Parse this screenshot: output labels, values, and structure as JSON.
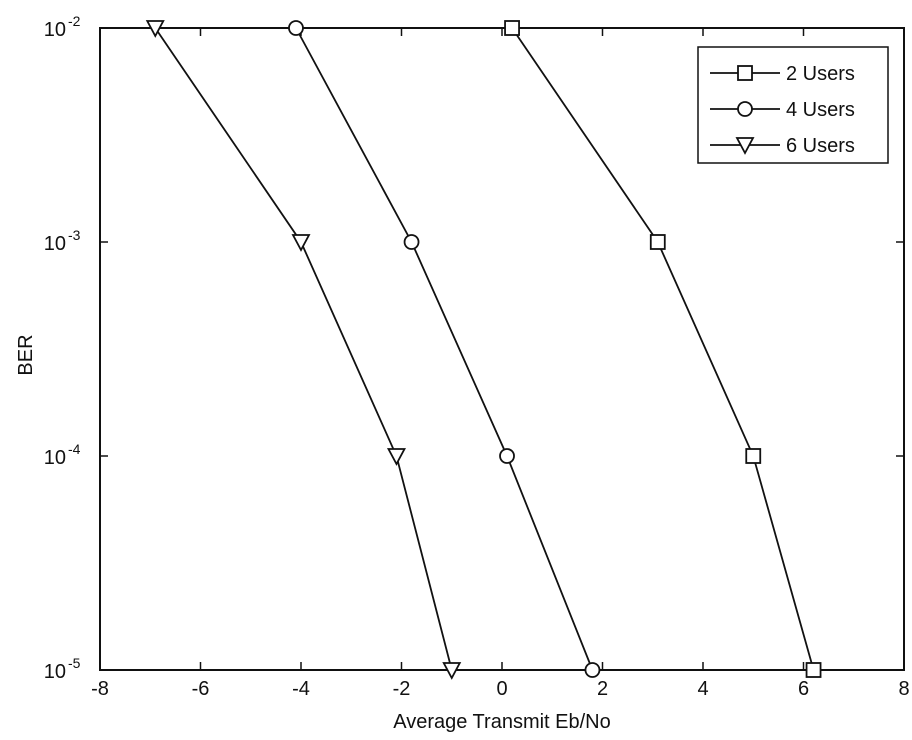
{
  "chart_data": {
    "type": "line",
    "title": "",
    "xlabel": "Average Transmit Eb/No",
    "ylabel": "BER",
    "xlim": [
      -8,
      8
    ],
    "ylim": [
      1e-05,
      0.01
    ],
    "yscale": "log",
    "grid": false,
    "legend": "top-right",
    "x_ticks": [
      "-8",
      "-6",
      "-4",
      "-2",
      "0",
      "2",
      "4",
      "6",
      "8"
    ],
    "y_ticks": [
      {
        "base": "10",
        "exp": "-2",
        "value": 0.01
      },
      {
        "base": "10",
        "exp": "-3",
        "value": 0.001
      },
      {
        "base": "10",
        "exp": "-4",
        "value": 0.0001
      },
      {
        "base": "10",
        "exp": "-5",
        "value": 1e-05
      }
    ],
    "series": [
      {
        "name": "2 Users",
        "marker": "square",
        "x": [
          0.2,
          3.1,
          5.0,
          6.2
        ],
        "y": [
          0.01,
          0.001,
          0.0001,
          1e-05
        ]
      },
      {
        "name": "4 Users",
        "marker": "circle",
        "x": [
          -4.1,
          -1.8,
          0.1,
          1.8
        ],
        "y": [
          0.01,
          0.001,
          0.0001,
          1e-05
        ]
      },
      {
        "name": "6 Users",
        "marker": "triangle-down",
        "x": [
          -6.9,
          -4.0,
          -2.1,
          -1.0
        ],
        "y": [
          0.01,
          0.001,
          0.0001,
          1e-05
        ]
      }
    ],
    "colors": {
      "line": "#111111",
      "background": "#ffffff"
    }
  }
}
